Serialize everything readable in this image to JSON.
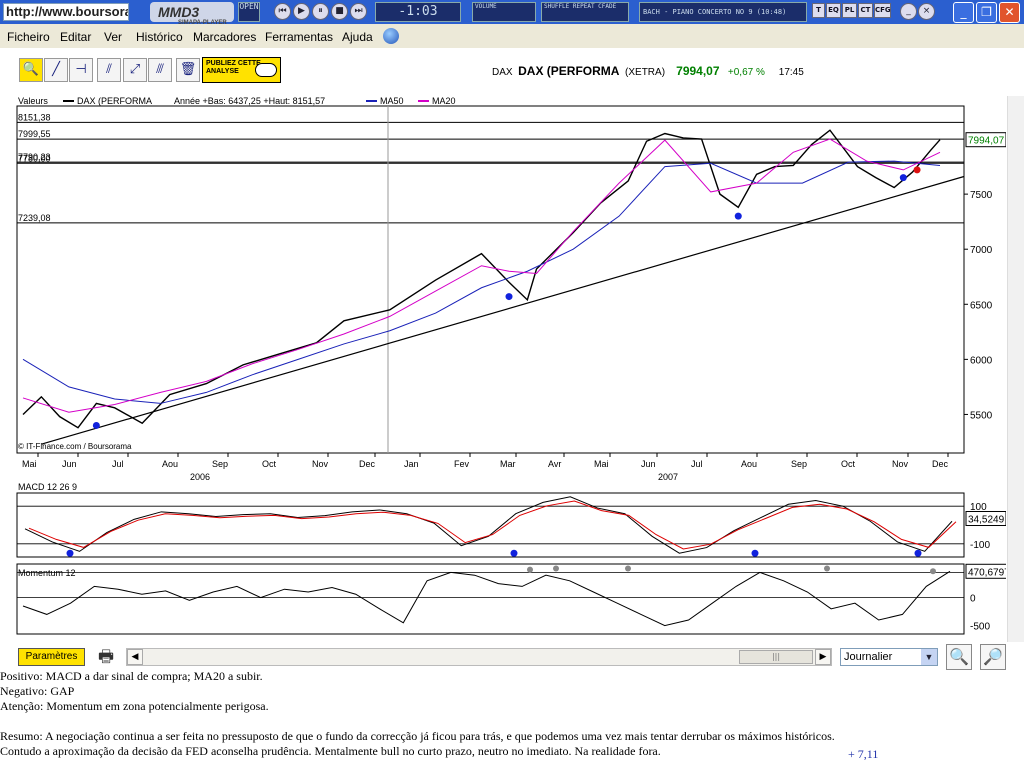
{
  "titlebar": {
    "url": "http://www.boursorama.com/",
    "player_logo": "MMD3",
    "player_sub": "SIMAPA-PLAYER",
    "open_label": "OPEN",
    "track_time": "-1:03",
    "volume_label": "VOLUME",
    "mode_label": "SHUFFLE REPEAT CFADE",
    "track_title": "BACH - PIANO CONCERTO NO 9 (10:48)",
    "tags": [
      "T",
      "EQ",
      "PL",
      "CT",
      "CFG"
    ]
  },
  "menu": [
    "Ficheiro",
    "Editar",
    "Ver",
    "Histórico",
    "Marcadores",
    "Ferramentas",
    "Ajuda"
  ],
  "toolbar": {
    "publicity": "PUBLIEZ CETTE ANALYSE",
    "quote_code": "DAX",
    "quote_name": "DAX (PERFORMA",
    "quote_market": "(XETRA)",
    "quote_price": "7994,07",
    "quote_change": "+0,67 %",
    "quote_time": "17:45"
  },
  "colors": {
    "price": "#000000",
    "ma50": "#1a22b8",
    "ma20": "#d400c8",
    "up": "#008000",
    "accent": "#ffe200"
  },
  "chart_data": [
    {
      "type": "line",
      "legend": [
        "Valeurs",
        "DAX (PERFORMA",
        "Année +Bas: 6437,25 +Haut: 8151,57",
        "MA50",
        "MA20"
      ],
      "price_labels": [
        "8151,38",
        "7999,55",
        "7790,23",
        "7780,00",
        "7239,08"
      ],
      "y_ticks": [
        "7500",
        "7000",
        "6500",
        "6000",
        "5500"
      ],
      "last_value": "7994,07",
      "ylim": [
        5150,
        8300
      ],
      "x_months": [
        "Mai",
        "Jun",
        "Jul",
        "Aou",
        "Sep",
        "Oct",
        "Nov",
        "Dec",
        "Jan",
        "Fev",
        "Mar",
        "Avr",
        "Mai",
        "Jun",
        "Jul",
        "Aou",
        "Sep",
        "Oct",
        "Nov",
        "Dec"
      ],
      "x_years": [
        "2006",
        "2007"
      ],
      "credit": "© IT-Finance.com / Boursorama",
      "series": [
        {
          "name": "DAX (PERFORMA",
          "x": [
            0,
            0.02,
            0.04,
            0.06,
            0.08,
            0.1,
            0.13,
            0.16,
            0.2,
            0.24,
            0.28,
            0.32,
            0.35,
            0.4,
            0.45,
            0.5,
            0.53,
            0.55,
            0.56,
            0.6,
            0.63,
            0.66,
            0.68,
            0.7,
            0.72,
            0.74,
            0.76,
            0.78,
            0.8,
            0.82,
            0.84,
            0.86,
            0.88,
            0.91,
            0.93,
            0.95,
            0.97,
            0.99,
            1.0
          ],
          "y": [
            5500,
            5660,
            5480,
            5380,
            5600,
            5560,
            5420,
            5680,
            5780,
            5950,
            6050,
            6150,
            6350,
            6450,
            6720,
            6960,
            6700,
            6540,
            6820,
            7150,
            7420,
            7620,
            7980,
            8050,
            8010,
            8000,
            7500,
            7380,
            7680,
            7750,
            7760,
            7950,
            8080,
            7750,
            7650,
            7560,
            7700,
            7900,
            7994
          ]
        },
        {
          "name": "MA50",
          "x": [
            0,
            0.05,
            0.1,
            0.15,
            0.2,
            0.25,
            0.3,
            0.35,
            0.4,
            0.45,
            0.5,
            0.55,
            0.6,
            0.65,
            0.7,
            0.75,
            0.8,
            0.85,
            0.9,
            0.95,
            1.0
          ],
          "y": [
            6000,
            5750,
            5640,
            5600,
            5700,
            5860,
            6000,
            6140,
            6260,
            6420,
            6650,
            6800,
            7000,
            7300,
            7750,
            7780,
            7600,
            7600,
            7790,
            7800,
            7760
          ]
        },
        {
          "name": "MA20",
          "x": [
            0,
            0.05,
            0.1,
            0.15,
            0.2,
            0.25,
            0.3,
            0.35,
            0.4,
            0.45,
            0.5,
            0.53,
            0.56,
            0.6,
            0.65,
            0.7,
            0.75,
            0.8,
            0.84,
            0.88,
            0.92,
            0.96,
            1.0
          ],
          "y": [
            5650,
            5520,
            5590,
            5700,
            5800,
            5960,
            6090,
            6230,
            6390,
            6620,
            6850,
            6800,
            6780,
            7160,
            7600,
            7990,
            7520,
            7600,
            7880,
            8000,
            7800,
            7720,
            7880
          ]
        }
      ]
    },
    {
      "type": "line",
      "title": "MACD 12 26 9",
      "y_ticks": [
        "100",
        "-100"
      ],
      "last_value": "34,5249",
      "ylim": [
        -170,
        170
      ]
    },
    {
      "type": "line",
      "title": "Momentum 12",
      "y_ticks": [
        "0",
        "-500"
      ],
      "last_value": "470,6797",
      "ylim": [
        -650,
        600
      ]
    }
  ],
  "bottom": {
    "params_label": "Paramètres",
    "period": "Journalier"
  },
  "comment": {
    "positive": "Positivo: MACD a dar sinal de compra; MA20 a subir.",
    "negative": "Negativo: GAP",
    "attention": "Atenção: Momentum em zona potencialmente perigosa.",
    "summary_1": "Resumo: A negociação continua a ser feita no pressuposto de que o fundo da correcção já ficou para trás, e que podemos uma vez mais tentar derrubar os máximos históricos.",
    "summary_2": "Contudo a aproximação da decisão da FED aconselha prudência. Mentalmente bull no curto prazo, neutro no imediato. Na realidade fora.",
    "extra": "+ 7,11"
  }
}
